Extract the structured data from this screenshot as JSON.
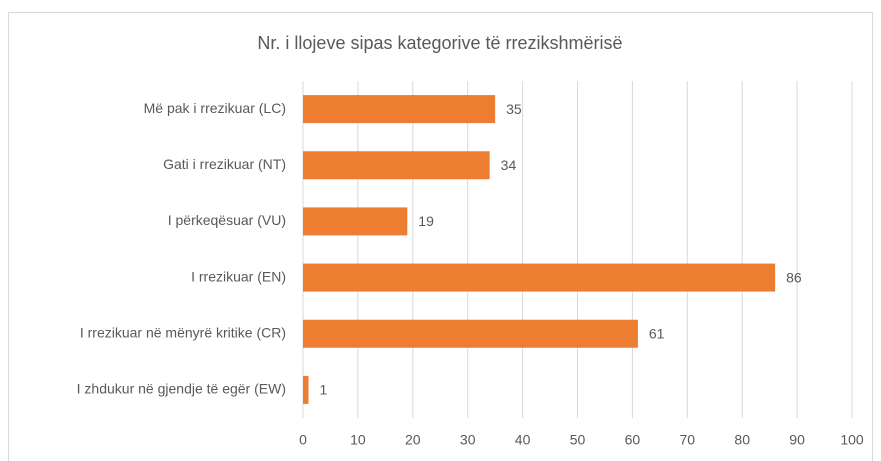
{
  "chart_data": {
    "type": "bar",
    "orientation": "horizontal",
    "title": "Nr. i llojeve sipas kategorive të rrezikshmërisë",
    "categories": [
      "Më pak i rrezikuar (LC)",
      "Gati i rrezikuar (NT)",
      "I përkeqësuar (VU)",
      "I rrezikuar (EN)",
      "I rrezikuar në mënyrë kritike (CR)",
      "I zhdukur në gjendje të egër (EW)"
    ],
    "values": [
      35,
      34,
      19,
      86,
      61,
      1
    ],
    "color": "#ED7D31",
    "xlim": [
      0,
      100
    ],
    "xticks": [
      0,
      10,
      20,
      30,
      40,
      50,
      60,
      70,
      80,
      90,
      100
    ],
    "grid": true
  }
}
